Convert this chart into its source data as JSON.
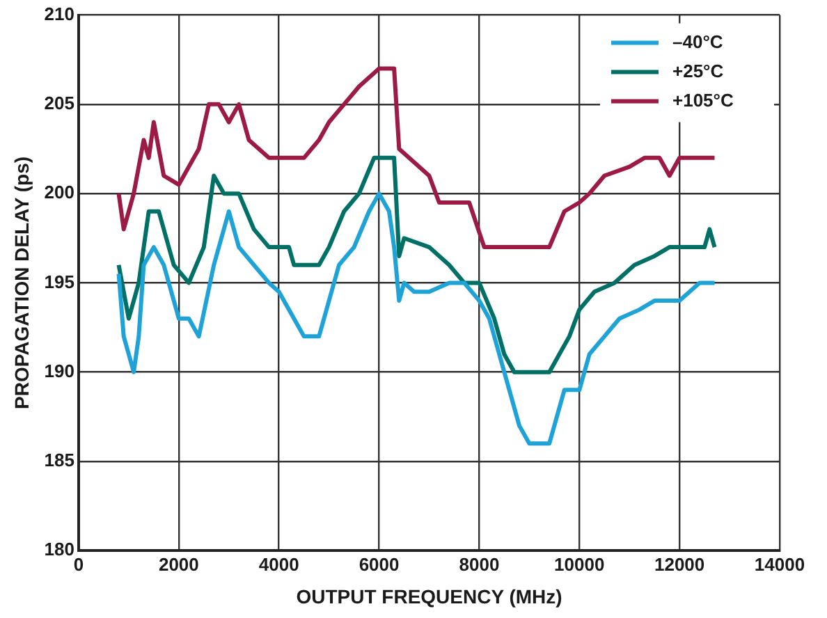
{
  "chart_data": {
    "type": "line",
    "xlabel": "OUTPUT FREQUENCY (MHz)",
    "ylabel": "PROPAGATION DELAY (ps)",
    "xlim": [
      0,
      14000
    ],
    "xticks": [
      0,
      2000,
      4000,
      6000,
      8000,
      10000,
      12000,
      14000
    ],
    "ylim": [
      180,
      210
    ],
    "yticks": [
      180,
      185,
      190,
      195,
      200,
      205,
      210
    ],
    "grid": true,
    "legend": "top right",
    "marker": "none",
    "line_style": "solid",
    "series": [
      {
        "name": "–40°C",
        "color": "#1fa3d7",
        "x": [
          800,
          900,
          1100,
          1200,
          1300,
          1500,
          1700,
          2000,
          2200,
          2400,
          2700,
          3000,
          3200,
          3500,
          3800,
          4000,
          4300,
          4500,
          4800,
          5000,
          5200,
          5500,
          5800,
          6000,
          6200,
          6300,
          6400,
          6500,
          6700,
          7000,
          7400,
          7700,
          8000,
          8200,
          8500,
          8800,
          9000,
          9400,
          9500,
          9700,
          10000,
          10200,
          10500,
          10800,
          11200,
          11500,
          12000,
          12400,
          12700
        ],
        "values": [
          195.5,
          192,
          190,
          192,
          196,
          197,
          196,
          193,
          193,
          192,
          196,
          199,
          197,
          196,
          195,
          194.5,
          193,
          192,
          192,
          194,
          196,
          197,
          199,
          200,
          199,
          197,
          194,
          195,
          194.5,
          194.5,
          195,
          195,
          194,
          193,
          190,
          187,
          186,
          186,
          187,
          189,
          189,
          191,
          192,
          193,
          193.5,
          194,
          194,
          195,
          195
        ]
      },
      {
        "name": "+25°C",
        "color": "#007066",
        "x": [
          800,
          1000,
          1200,
          1400,
          1600,
          1900,
          2200,
          2500,
          2700,
          2900,
          3200,
          3500,
          3800,
          4200,
          4300,
          4800,
          5000,
          5300,
          5600,
          5900,
          6300,
          6400,
          6500,
          7000,
          7400,
          7700,
          8000,
          8300,
          8500,
          8700,
          9400,
          9600,
          9800,
          10000,
          10300,
          10700,
          11100,
          11500,
          11800,
          12500,
          12600,
          12700
        ],
        "values": [
          196,
          193,
          195,
          199,
          199,
          196,
          195,
          197,
          201,
          200,
          200,
          198,
          197,
          197,
          196,
          196,
          197,
          199,
          200,
          202,
          202,
          196.5,
          197.5,
          197,
          196,
          195,
          195,
          193,
          191,
          190,
          190,
          191,
          192,
          193.5,
          194.5,
          195,
          196,
          196.5,
          197,
          197,
          198,
          197
        ]
      },
      {
        "name": "+105°C",
        "color": "#9b1b45",
        "x": [
          800,
          900,
          1100,
          1300,
          1400,
          1500,
          1700,
          2000,
          2200,
          2400,
          2600,
          2800,
          3000,
          3200,
          3400,
          3800,
          4500,
          4800,
          5000,
          5300,
          5600,
          6000,
          6300,
          6400,
          6600,
          7000,
          7200,
          7800,
          8100,
          9400,
          9700,
          10000,
          10200,
          10500,
          11000,
          11300,
          11600,
          11800,
          12000,
          12700
        ],
        "values": [
          200,
          198,
          200,
          203,
          202,
          204,
          201,
          200.5,
          201.5,
          202.5,
          205,
          205,
          204,
          205,
          203,
          202,
          202,
          203,
          204,
          205,
          206,
          207,
          207,
          202.5,
          202,
          201,
          199.5,
          199.5,
          197,
          197,
          199,
          199.5,
          200,
          201,
          201.5,
          202,
          202,
          201,
          202,
          202
        ]
      }
    ]
  }
}
